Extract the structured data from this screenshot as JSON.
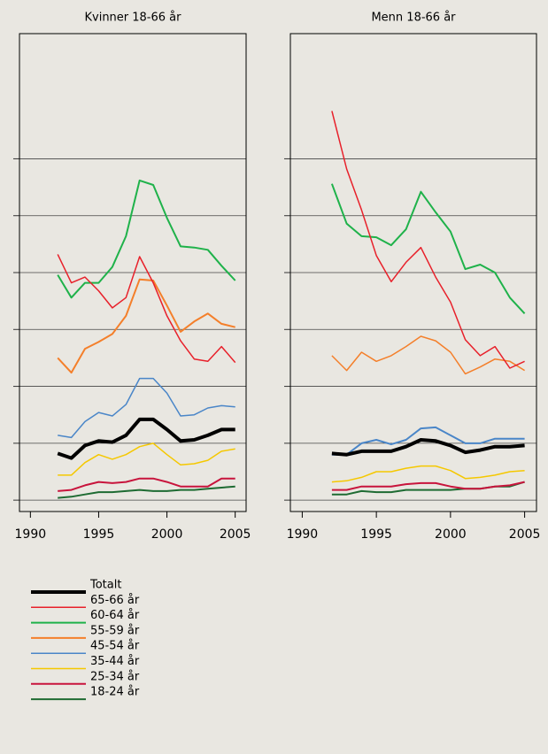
{
  "chart_data": [
    {
      "type": "line",
      "title": "Kvinner 18-66 år",
      "x": [
        1992,
        1993,
        1994,
        1995,
        1996,
        1997,
        1998,
        1999,
        2000,
        2001,
        2002,
        2003,
        2004,
        2005
      ],
      "xlim": [
        1989.2,
        2005.8
      ],
      "xticks": [
        1990,
        1995,
        2000,
        2005
      ],
      "ylim": [
        -1,
        41
      ],
      "yticks": [
        0,
        5,
        10,
        15,
        20,
        25,
        30
      ],
      "grid": true,
      "series": [
        {
          "name": "Totalt",
          "color": "#000000",
          "linewidth": 4,
          "values": [
            4.1,
            3.7,
            4.8,
            5.2,
            5.1,
            5.7,
            7.1,
            7.1,
            6.2,
            5.2,
            5.3,
            5.7,
            6.2,
            6.2
          ]
        },
        {
          "name": "65-66 år",
          "color": "#e8202a",
          "linewidth": 1.5,
          "values": [
            21.6,
            19.1,
            19.6,
            18.4,
            16.9,
            17.8,
            21.4,
            19.1,
            16.2,
            14.0,
            12.4,
            12.2,
            13.5,
            12.1
          ]
        },
        {
          "name": "60-64 år",
          "color": "#1fb24a",
          "linewidth": 2,
          "values": [
            19.8,
            17.8,
            19.1,
            19.1,
            20.5,
            23.2,
            28.1,
            27.7,
            24.8,
            22.3,
            22.2,
            22.0,
            20.6,
            19.3
          ]
        },
        {
          "name": "55-59 år",
          "color": "#f47f2a",
          "linewidth": 2,
          "values": [
            12.5,
            11.2,
            13.3,
            13.9,
            14.6,
            16.2,
            19.4,
            19.3,
            17.1,
            14.8,
            15.7,
            16.4,
            15.5,
            15.2
          ]
        },
        {
          "name": "45-54 år",
          "color": "#4a86c8",
          "linewidth": 1.5,
          "values": [
            5.7,
            5.5,
            6.9,
            7.7,
            7.4,
            8.4,
            10.7,
            10.7,
            9.4,
            7.4,
            7.5,
            8.1,
            8.3,
            8.2
          ]
        },
        {
          "name": "35-44 år",
          "color": "#f5c800",
          "linewidth": 1.5,
          "values": [
            2.2,
            2.2,
            3.3,
            4.0,
            3.6,
            4.0,
            4.7,
            5.0,
            4.0,
            3.1,
            3.2,
            3.5,
            4.3,
            4.5
          ]
        },
        {
          "name": "25-34 år",
          "color": "#c8143c",
          "linewidth": 2,
          "values": [
            0.8,
            0.9,
            1.3,
            1.6,
            1.5,
            1.6,
            1.9,
            1.9,
            1.6,
            1.2,
            1.2,
            1.2,
            1.9,
            1.9
          ]
        },
        {
          "name": "18-24 år",
          "color": "#1e6b32",
          "linewidth": 2,
          "values": [
            0.2,
            0.3,
            0.5,
            0.7,
            0.7,
            0.8,
            0.9,
            0.8,
            0.8,
            0.9,
            0.9,
            1.0,
            1.1,
            1.2
          ]
        }
      ]
    },
    {
      "type": "line",
      "title": "Menn 18-66 år",
      "x": [
        1992,
        1993,
        1994,
        1995,
        1996,
        1997,
        1998,
        1999,
        2000,
        2001,
        2002,
        2003,
        2004,
        2005
      ],
      "xlim": [
        1989.2,
        2005.8
      ],
      "xticks": [
        1990,
        1995,
        2000,
        2005
      ],
      "ylim": [
        -1,
        41
      ],
      "yticks": [
        0,
        5,
        10,
        15,
        20,
        25,
        30
      ],
      "grid": true,
      "series": [
        {
          "color": "#000000",
          "linewidth": 4,
          "values": [
            4.1,
            4.0,
            4.3,
            4.3,
            4.3,
            4.7,
            5.3,
            5.2,
            4.8,
            4.2,
            4.4,
            4.7,
            4.7,
            4.8
          ]
        },
        {
          "color": "#e8202a",
          "linewidth": 1.5,
          "values": [
            34.2,
            29.1,
            25.5,
            21.5,
            19.2,
            20.9,
            22.2,
            19.6,
            17.4,
            14.1,
            12.7,
            13.5,
            11.6,
            12.2
          ]
        },
        {
          "color": "#1fb24a",
          "linewidth": 2,
          "values": [
            27.8,
            24.3,
            23.2,
            23.1,
            22.4,
            23.8,
            27.1,
            25.3,
            23.6,
            20.3,
            20.7,
            20.0,
            17.8,
            16.4
          ]
        },
        {
          "color": "#f47f2a",
          "linewidth": 1.5,
          "values": [
            12.7,
            11.4,
            13.0,
            12.2,
            12.7,
            13.5,
            14.4,
            14.0,
            13.0,
            11.1,
            11.7,
            12.4,
            12.2,
            11.4
          ]
        },
        {
          "color": "#4a86c8",
          "linewidth": 2,
          "values": [
            4.0,
            4.0,
            5.0,
            5.3,
            4.9,
            5.3,
            6.3,
            6.4,
            5.7,
            5.0,
            5.0,
            5.4,
            5.4,
            5.4
          ]
        },
        {
          "color": "#f5c800",
          "linewidth": 1.5,
          "values": [
            1.6,
            1.7,
            2.0,
            2.5,
            2.5,
            2.8,
            3.0,
            3.0,
            2.6,
            1.9,
            2.0,
            2.2,
            2.5,
            2.6
          ]
        },
        {
          "color": "#c8143c",
          "linewidth": 2,
          "values": [
            0.9,
            0.9,
            1.2,
            1.2,
            1.2,
            1.4,
            1.5,
            1.5,
            1.2,
            1.0,
            1.0,
            1.2,
            1.3,
            1.6
          ]
        },
        {
          "color": "#1e6b32",
          "linewidth": 2,
          "values": [
            0.5,
            0.5,
            0.8,
            0.7,
            0.7,
            0.9,
            0.9,
            0.9,
            0.9,
            1.0,
            1.0,
            1.2,
            1.2,
            1.6
          ]
        }
      ]
    }
  ]
}
